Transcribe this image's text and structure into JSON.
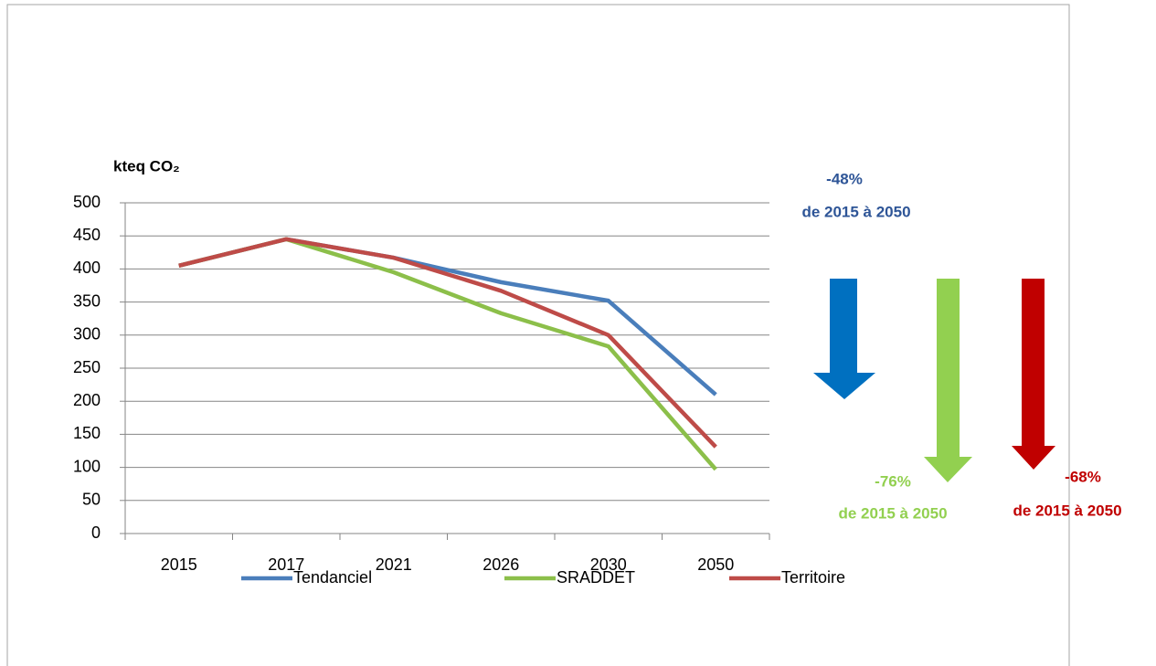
{
  "chart_data": {
    "type": "line",
    "y_label": "kteq CO₂",
    "categories": [
      "2015",
      "2017",
      "2021",
      "2026",
      "2030",
      "2050"
    ],
    "series": [
      {
        "name": "Tendanciel",
        "color": "#4a7ebb",
        "values": [
          405,
          445,
          417,
          380,
          352,
          210
        ]
      },
      {
        "name": "SRADDET",
        "color": "#8cbf4a",
        "values": [
          405,
          445,
          395,
          333,
          283,
          97
        ]
      },
      {
        "name": "Territoire",
        "color": "#be4b48",
        "values": [
          405,
          445,
          417,
          367,
          300,
          131
        ]
      }
    ],
    "ylim": [
      0,
      500
    ],
    "yticks": [
      0,
      50,
      100,
      150,
      200,
      250,
      300,
      350,
      400,
      450,
      500
    ],
    "grid": true,
    "legend": "bottom",
    "annotations": [
      {
        "percent": "-48%",
        "text": "de 2015 à 2050",
        "color": "#2e5597"
      },
      {
        "percent": "-76%",
        "text": "de 2015 à 2050",
        "color": "#92d050"
      },
      {
        "percent": "-68%",
        "text": "de 2015 à 2050",
        "color": "#c00000"
      }
    ]
  }
}
